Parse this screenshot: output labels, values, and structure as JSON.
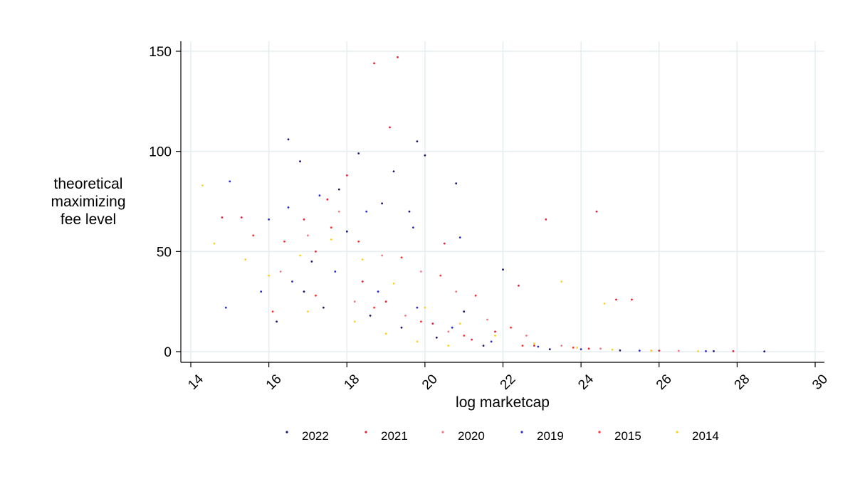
{
  "chart_data": {
    "type": "scatter",
    "title": "",
    "xlabel": "log marketcap",
    "ylabel_lines": [
      "theoretical",
      "maximizing",
      "fee level"
    ],
    "xlim": [
      14,
      30
    ],
    "ylim": [
      0,
      150
    ],
    "x_ticks": [
      "14",
      "16",
      "18",
      "20",
      "22",
      "24",
      "26",
      "28",
      "30"
    ],
    "y_ticks": [
      "0",
      "50",
      "100",
      "150"
    ],
    "grid": true,
    "legend_position": "bottom",
    "series": [
      {
        "name": "2022",
        "color": "#1a1a6e",
        "points": [
          [
            16.5,
            106
          ],
          [
            16.8,
            95
          ],
          [
            17.8,
            81
          ],
          [
            18.3,
            99
          ],
          [
            18.9,
            74
          ],
          [
            19.2,
            90
          ],
          [
            19.8,
            105
          ],
          [
            20.0,
            98
          ],
          [
            20.8,
            84
          ],
          [
            22.0,
            41
          ],
          [
            16.9,
            30
          ],
          [
            17.4,
            22
          ],
          [
            18.6,
            18
          ],
          [
            19.4,
            12
          ],
          [
            20.3,
            7
          ],
          [
            21.5,
            3
          ],
          [
            23.2,
            1.2
          ],
          [
            25.0,
            0.6
          ],
          [
            27.4,
            0.2
          ],
          [
            28.7,
            0.1
          ],
          [
            16.2,
            15
          ],
          [
            17.1,
            45
          ],
          [
            18.0,
            60
          ],
          [
            19.6,
            70
          ],
          [
            21.0,
            20
          ]
        ]
      },
      {
        "name": "2021",
        "color": "#e8223a",
        "points": [
          [
            18.7,
            144
          ],
          [
            19.3,
            147
          ],
          [
            19.1,
            112
          ],
          [
            18.0,
            88
          ],
          [
            17.5,
            76
          ],
          [
            16.9,
            66
          ],
          [
            15.3,
            67
          ],
          [
            14.8,
            67
          ],
          [
            20.5,
            54
          ],
          [
            23.1,
            66
          ],
          [
            24.4,
            70
          ],
          [
            22.4,
            33
          ],
          [
            21.8,
            10
          ],
          [
            24.9,
            26
          ],
          [
            25.3,
            26
          ],
          [
            17.2,
            50
          ],
          [
            18.4,
            35
          ],
          [
            19.0,
            25
          ],
          [
            20.2,
            14
          ],
          [
            21.2,
            6
          ],
          [
            22.8,
            3
          ],
          [
            24.2,
            1.5
          ],
          [
            26.0,
            0.5
          ],
          [
            27.9,
            0.2
          ]
        ]
      },
      {
        "name": "2020",
        "color": "#f07a86",
        "points": [
          [
            17.0,
            58
          ],
          [
            17.8,
            70
          ],
          [
            18.9,
            48
          ],
          [
            19.9,
            40
          ],
          [
            20.8,
            30
          ],
          [
            21.6,
            16
          ],
          [
            22.6,
            8
          ],
          [
            23.5,
            3
          ],
          [
            24.5,
            1.5
          ],
          [
            26.5,
            0.4
          ],
          [
            16.3,
            40
          ],
          [
            18.2,
            25
          ],
          [
            19.5,
            18
          ],
          [
            20.6,
            10
          ]
        ]
      },
      {
        "name": "2019",
        "color": "#2a2ad0",
        "points": [
          [
            15.0,
            85
          ],
          [
            16.0,
            66
          ],
          [
            16.5,
            72
          ],
          [
            17.3,
            78
          ],
          [
            18.5,
            70
          ],
          [
            19.7,
            62
          ],
          [
            20.9,
            57
          ],
          [
            14.9,
            22
          ],
          [
            15.8,
            30
          ],
          [
            16.6,
            35
          ],
          [
            17.7,
            40
          ],
          [
            18.8,
            30
          ],
          [
            19.8,
            22
          ],
          [
            20.7,
            12
          ],
          [
            21.7,
            5
          ],
          [
            22.9,
            2.5
          ],
          [
            24.0,
            1.2
          ],
          [
            25.5,
            0.5
          ],
          [
            27.2,
            0.2
          ]
        ]
      },
      {
        "name": "2015",
        "color": "#ff3333",
        "points": [
          [
            15.6,
            58
          ],
          [
            16.4,
            55
          ],
          [
            17.6,
            62
          ],
          [
            18.3,
            55
          ],
          [
            19.4,
            47
          ],
          [
            20.4,
            38
          ],
          [
            21.3,
            28
          ],
          [
            22.2,
            12
          ],
          [
            23.8,
            2
          ],
          [
            16.1,
            20
          ],
          [
            17.2,
            28
          ],
          [
            18.7,
            22
          ],
          [
            19.9,
            15
          ],
          [
            21.0,
            8
          ],
          [
            22.5,
            3
          ],
          [
            25.8,
            0.5
          ]
        ]
      },
      {
        "name": "2014",
        "color": "#ffd21f",
        "points": [
          [
            14.3,
            83
          ],
          [
            14.6,
            54
          ],
          [
            15.4,
            46
          ],
          [
            16.0,
            38
          ],
          [
            16.8,
            48
          ],
          [
            17.6,
            56
          ],
          [
            18.4,
            46
          ],
          [
            19.2,
            34
          ],
          [
            20.0,
            22
          ],
          [
            20.9,
            14
          ],
          [
            21.8,
            8
          ],
          [
            22.8,
            4
          ],
          [
            23.9,
            2
          ],
          [
            24.6,
            24
          ],
          [
            23.5,
            35
          ],
          [
            24.8,
            1
          ],
          [
            25.8,
            0.5
          ],
          [
            27.0,
            0.2
          ],
          [
            17.0,
            20
          ],
          [
            18.2,
            15
          ],
          [
            19.0,
            9
          ],
          [
            19.8,
            5
          ],
          [
            20.6,
            3
          ]
        ]
      }
    ]
  }
}
